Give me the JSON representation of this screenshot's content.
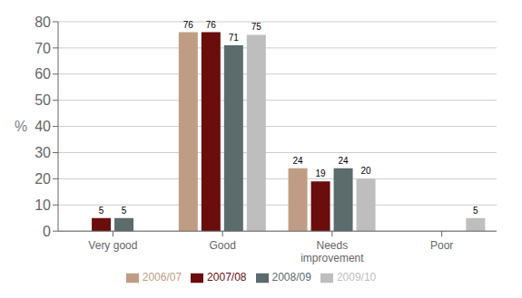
{
  "chart_data": {
    "type": "bar",
    "categories": [
      "Very good",
      "Good",
      "Needs\nimprovement",
      "Poor"
    ],
    "series": [
      {
        "name": "2006/07",
        "color": "#BF9D84",
        "values": [
          0,
          76,
          24,
          0
        ]
      },
      {
        "name": "2007/08",
        "color": "#6B0D0D",
        "values": [
          5,
          76,
          19,
          0
        ]
      },
      {
        "name": "2008/09",
        "color": "#5C6B6B",
        "values": [
          5,
          71,
          24,
          0
        ]
      },
      {
        "name": "2009/10",
        "color": "#BEBEBE",
        "values": [
          0,
          75,
          20,
          5
        ]
      }
    ],
    "ylabel": "%",
    "ylim": [
      0,
      80
    ],
    "yticks": [
      0,
      10,
      20,
      30,
      40,
      50,
      60,
      70,
      80
    ],
    "grid": true,
    "data_labels": true,
    "legend": "bottom"
  }
}
